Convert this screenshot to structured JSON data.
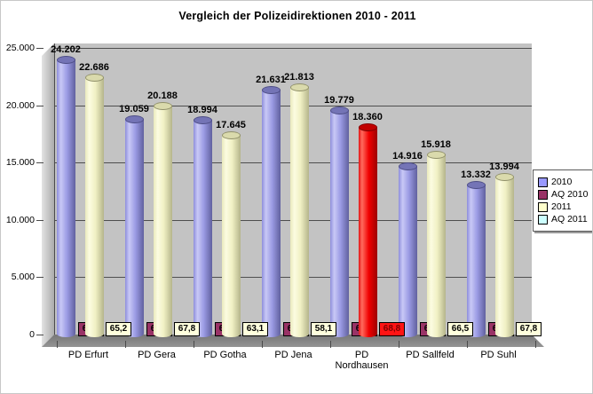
{
  "title": "Vergleich der Polizeidirektionen 2010 - 2011",
  "colors": {
    "back_wall": "#c3c3c3",
    "floor": "#8a8a8a",
    "gridline": "#4f4f4f",
    "highlight": "#FF0000"
  },
  "chart_data": {
    "type": "bar",
    "subtype": "3d-cylinder",
    "title": "Vergleich der Polizeidirektionen 2010 - 2011",
    "categories": [
      "PD Erfurt",
      "PD Gera",
      "PD Gotha",
      "PD Jena",
      "PD Nordhausen",
      "PD Sallfeld",
      "PD Suhl"
    ],
    "series": [
      {
        "name": "2010",
        "kind": "bar",
        "color": "#9999FF",
        "legend_color": "#9999FF",
        "values": [
          24202,
          19059,
          18994,
          21631,
          19779,
          14916,
          13332
        ],
        "labels": [
          "24.202",
          "19.059",
          "18.994",
          "21.631",
          "19.779",
          "14.916",
          "13.332"
        ]
      },
      {
        "name": "AQ 2010",
        "kind": "label-box",
        "color": "#993366",
        "legend_color": "#993366",
        "text_color": "#000000",
        "values": [
          63.1,
          68.4,
          65.5,
          61.1,
          68.4,
          64.9,
          66.2
        ],
        "labels": [
          "63,1",
          "68,4",
          "65,5",
          "61,1",
          "68,4",
          "64,9",
          "66,2"
        ]
      },
      {
        "name": "2011",
        "kind": "bar",
        "color": "#FFFFCC",
        "legend_color": "#FFFFCC",
        "highlight_index": 4,
        "highlight_color": "#FF0000",
        "values": [
          22686,
          20188,
          17645,
          21813,
          18360,
          15918,
          13994
        ],
        "labels": [
          "22.686",
          "20.188",
          "17.645",
          "21.813",
          "18.360",
          "15.918",
          "13.994"
        ]
      },
      {
        "name": "AQ 2011",
        "kind": "label-box",
        "color": "#FFFFDD",
        "legend_color": "#CCFFFF",
        "text_color": "#000000",
        "highlight_index": 4,
        "highlight_color": "#FF1414",
        "highlight_text_color": "#7F0000",
        "values": [
          65.2,
          67.8,
          63.1,
          58.1,
          68.8,
          66.5,
          67.8
        ],
        "labels": [
          "65,2",
          "67,8",
          "63,1",
          "58,1",
          "68,8",
          "66,5",
          "67,8"
        ]
      }
    ],
    "ylim": [
      0,
      25000
    ],
    "ytick_step": 5000,
    "ytick_labels": [
      "0",
      "5.000",
      "10.000",
      "15.000",
      "20.000",
      "25.000"
    ],
    "grid": true,
    "legend_position": "right"
  }
}
